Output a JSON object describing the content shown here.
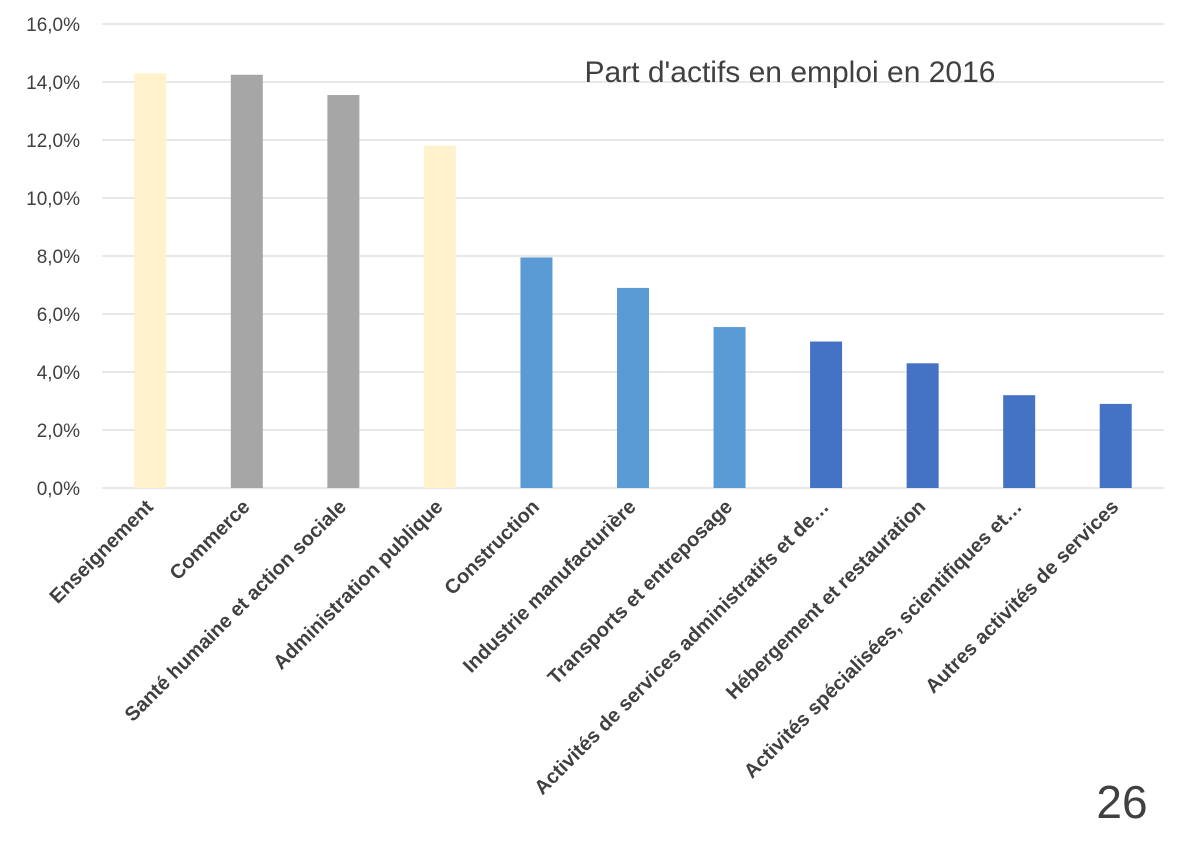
{
  "chart_data": {
    "type": "bar",
    "title": "Part d'actifs en emploi en 2016",
    "xlabel": "",
    "ylabel": "",
    "ylim": [
      0,
      16
    ],
    "yticks": [
      "0,0%",
      "2,0%",
      "4,0%",
      "6,0%",
      "8,0%",
      "10,0%",
      "12,0%",
      "14,0%",
      "16,0%"
    ],
    "grid": true,
    "categories": [
      "Enseignement",
      "Commerce",
      "Santé humaine et action sociale",
      "Administration publique",
      "Construction",
      "Industrie manufacturière",
      "Transports et entreposage",
      "Activités de services administratifs et de…",
      "Hébergement et restauration",
      "Activités spécialisées, scientifiques et…",
      "Autres activités de services"
    ],
    "values": [
      14.3,
      14.25,
      13.55,
      11.8,
      7.95,
      6.9,
      5.55,
      5.05,
      4.3,
      3.2,
      2.9
    ],
    "bar_colors": [
      "#fff2cc",
      "#a6a6a6",
      "#a6a6a6",
      "#fff2cc",
      "#5b9bd5",
      "#5b9bd5",
      "#5b9bd5",
      "#4472c4",
      "#4472c4",
      "#4472c4",
      "#4472c4"
    ],
    "unit": "%"
  },
  "page_number": "26"
}
